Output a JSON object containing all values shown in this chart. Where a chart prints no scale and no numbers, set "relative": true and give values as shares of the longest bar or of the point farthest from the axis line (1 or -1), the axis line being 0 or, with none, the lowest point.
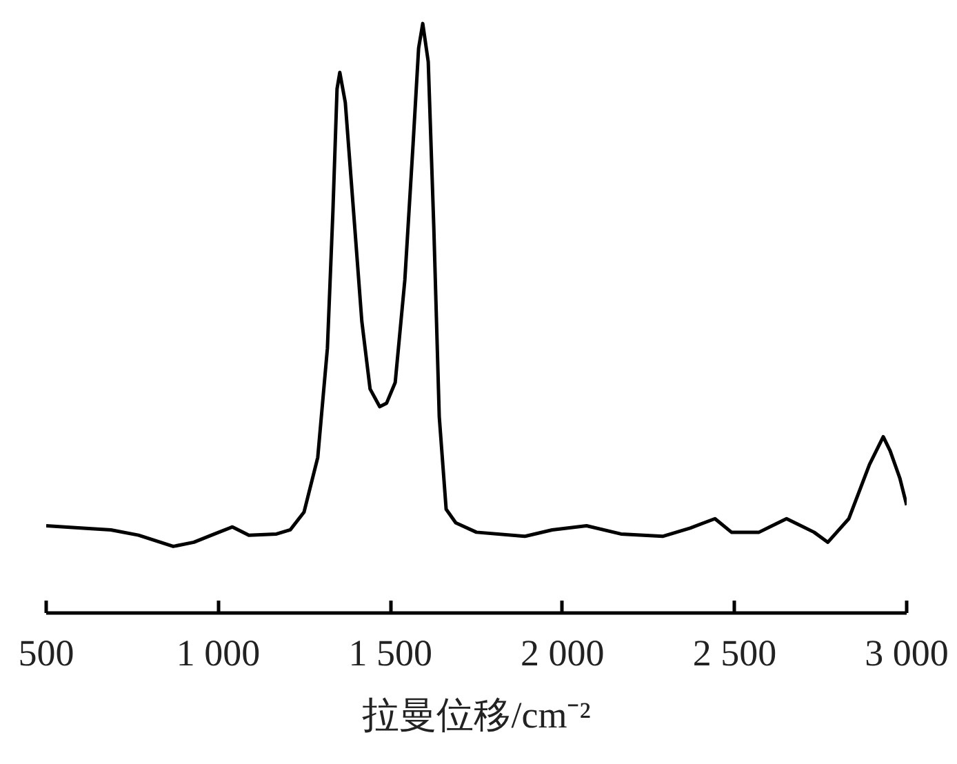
{
  "chart_data": {
    "type": "line",
    "relative": true,
    "xlabel": "拉曼位移/cm⁻²",
    "xlim": [
      500,
      3000
    ],
    "xticks": [
      500,
      {
        "value": 1000,
        "label": "1 000"
      },
      {
        "value": 1500,
        "label": "1 500"
      },
      {
        "value": 2000,
        "label": "2 000"
      },
      {
        "value": 2500,
        "label": "2 500"
      },
      {
        "value": 3000,
        "label": "3 000"
      }
    ],
    "grid": false,
    "marker": "none",
    "line_style": "solid",
    "series": [
      {
        "color": "#000000",
        "x": [
          500,
          608,
          688,
          768,
          869,
          929,
          989,
          1041,
          1089,
          1169,
          1209,
          1249,
          1289,
          1317,
          1333,
          1345,
          1353,
          1369,
          1393,
          1417,
          1441,
          1469,
          1489,
          1514,
          1542,
          1566,
          1582,
          1594,
          1610,
          1626,
          1642,
          1662,
          1690,
          1750,
          1890,
          1970,
          2070,
          2170,
          2291,
          2371,
          2443,
          2491,
          2571,
          2651,
          2731,
          2771,
          2832,
          2892,
          2932,
          2952,
          2980,
          3000
        ],
        "values": [
          0.148,
          0.144,
          0.141,
          0.132,
          0.113,
          0.12,
          0.134,
          0.146,
          0.132,
          0.134,
          0.141,
          0.171,
          0.264,
          0.449,
          0.681,
          0.889,
          0.917,
          0.866,
          0.681,
          0.495,
          0.38,
          0.35,
          0.356,
          0.391,
          0.565,
          0.796,
          0.958,
          1.0,
          0.935,
          0.657,
          0.333,
          0.176,
          0.153,
          0.137,
          0.13,
          0.141,
          0.148,
          0.134,
          0.13,
          0.144,
          0.16,
          0.137,
          0.137,
          0.16,
          0.137,
          0.12,
          0.16,
          0.252,
          0.299,
          0.275,
          0.229,
          0.183
        ]
      }
    ]
  }
}
